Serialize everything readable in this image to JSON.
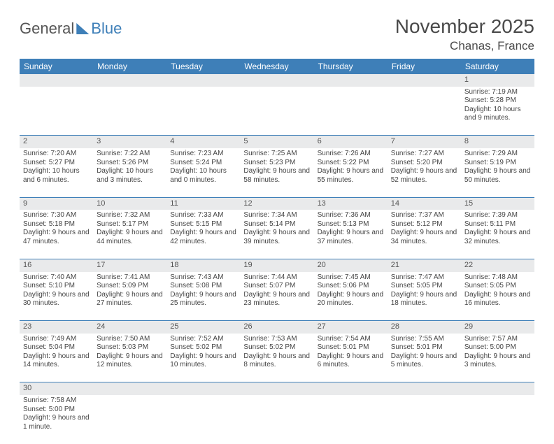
{
  "logo": {
    "text1": "General",
    "text2": "Blue"
  },
  "title": "November 2025",
  "location": "Chanas, France",
  "weekdays": [
    "Sunday",
    "Monday",
    "Tuesday",
    "Wednesday",
    "Thursday",
    "Friday",
    "Saturday"
  ],
  "colors": {
    "header_bg": "#3e7fb8",
    "daynum_bg": "#e9eaeb",
    "row_border": "#3e7fb8"
  },
  "weeks": [
    [
      null,
      null,
      null,
      null,
      null,
      null,
      {
        "n": "1",
        "sunrise": "Sunrise: 7:19 AM",
        "sunset": "Sunset: 5:28 PM",
        "daylight": "Daylight: 10 hours and 9 minutes."
      }
    ],
    [
      {
        "n": "2",
        "sunrise": "Sunrise: 7:20 AM",
        "sunset": "Sunset: 5:27 PM",
        "daylight": "Daylight: 10 hours and 6 minutes."
      },
      {
        "n": "3",
        "sunrise": "Sunrise: 7:22 AM",
        "sunset": "Sunset: 5:26 PM",
        "daylight": "Daylight: 10 hours and 3 minutes."
      },
      {
        "n": "4",
        "sunrise": "Sunrise: 7:23 AM",
        "sunset": "Sunset: 5:24 PM",
        "daylight": "Daylight: 10 hours and 0 minutes."
      },
      {
        "n": "5",
        "sunrise": "Sunrise: 7:25 AM",
        "sunset": "Sunset: 5:23 PM",
        "daylight": "Daylight: 9 hours and 58 minutes."
      },
      {
        "n": "6",
        "sunrise": "Sunrise: 7:26 AM",
        "sunset": "Sunset: 5:22 PM",
        "daylight": "Daylight: 9 hours and 55 minutes."
      },
      {
        "n": "7",
        "sunrise": "Sunrise: 7:27 AM",
        "sunset": "Sunset: 5:20 PM",
        "daylight": "Daylight: 9 hours and 52 minutes."
      },
      {
        "n": "8",
        "sunrise": "Sunrise: 7:29 AM",
        "sunset": "Sunset: 5:19 PM",
        "daylight": "Daylight: 9 hours and 50 minutes."
      }
    ],
    [
      {
        "n": "9",
        "sunrise": "Sunrise: 7:30 AM",
        "sunset": "Sunset: 5:18 PM",
        "daylight": "Daylight: 9 hours and 47 minutes."
      },
      {
        "n": "10",
        "sunrise": "Sunrise: 7:32 AM",
        "sunset": "Sunset: 5:17 PM",
        "daylight": "Daylight: 9 hours and 44 minutes."
      },
      {
        "n": "11",
        "sunrise": "Sunrise: 7:33 AM",
        "sunset": "Sunset: 5:15 PM",
        "daylight": "Daylight: 9 hours and 42 minutes."
      },
      {
        "n": "12",
        "sunrise": "Sunrise: 7:34 AM",
        "sunset": "Sunset: 5:14 PM",
        "daylight": "Daylight: 9 hours and 39 minutes."
      },
      {
        "n": "13",
        "sunrise": "Sunrise: 7:36 AM",
        "sunset": "Sunset: 5:13 PM",
        "daylight": "Daylight: 9 hours and 37 minutes."
      },
      {
        "n": "14",
        "sunrise": "Sunrise: 7:37 AM",
        "sunset": "Sunset: 5:12 PM",
        "daylight": "Daylight: 9 hours and 34 minutes."
      },
      {
        "n": "15",
        "sunrise": "Sunrise: 7:39 AM",
        "sunset": "Sunset: 5:11 PM",
        "daylight": "Daylight: 9 hours and 32 minutes."
      }
    ],
    [
      {
        "n": "16",
        "sunrise": "Sunrise: 7:40 AM",
        "sunset": "Sunset: 5:10 PM",
        "daylight": "Daylight: 9 hours and 30 minutes."
      },
      {
        "n": "17",
        "sunrise": "Sunrise: 7:41 AM",
        "sunset": "Sunset: 5:09 PM",
        "daylight": "Daylight: 9 hours and 27 minutes."
      },
      {
        "n": "18",
        "sunrise": "Sunrise: 7:43 AM",
        "sunset": "Sunset: 5:08 PM",
        "daylight": "Daylight: 9 hours and 25 minutes."
      },
      {
        "n": "19",
        "sunrise": "Sunrise: 7:44 AM",
        "sunset": "Sunset: 5:07 PM",
        "daylight": "Daylight: 9 hours and 23 minutes."
      },
      {
        "n": "20",
        "sunrise": "Sunrise: 7:45 AM",
        "sunset": "Sunset: 5:06 PM",
        "daylight": "Daylight: 9 hours and 20 minutes."
      },
      {
        "n": "21",
        "sunrise": "Sunrise: 7:47 AM",
        "sunset": "Sunset: 5:05 PM",
        "daylight": "Daylight: 9 hours and 18 minutes."
      },
      {
        "n": "22",
        "sunrise": "Sunrise: 7:48 AM",
        "sunset": "Sunset: 5:05 PM",
        "daylight": "Daylight: 9 hours and 16 minutes."
      }
    ],
    [
      {
        "n": "23",
        "sunrise": "Sunrise: 7:49 AM",
        "sunset": "Sunset: 5:04 PM",
        "daylight": "Daylight: 9 hours and 14 minutes."
      },
      {
        "n": "24",
        "sunrise": "Sunrise: 7:50 AM",
        "sunset": "Sunset: 5:03 PM",
        "daylight": "Daylight: 9 hours and 12 minutes."
      },
      {
        "n": "25",
        "sunrise": "Sunrise: 7:52 AM",
        "sunset": "Sunset: 5:02 PM",
        "daylight": "Daylight: 9 hours and 10 minutes."
      },
      {
        "n": "26",
        "sunrise": "Sunrise: 7:53 AM",
        "sunset": "Sunset: 5:02 PM",
        "daylight": "Daylight: 9 hours and 8 minutes."
      },
      {
        "n": "27",
        "sunrise": "Sunrise: 7:54 AM",
        "sunset": "Sunset: 5:01 PM",
        "daylight": "Daylight: 9 hours and 6 minutes."
      },
      {
        "n": "28",
        "sunrise": "Sunrise: 7:55 AM",
        "sunset": "Sunset: 5:01 PM",
        "daylight": "Daylight: 9 hours and 5 minutes."
      },
      {
        "n": "29",
        "sunrise": "Sunrise: 7:57 AM",
        "sunset": "Sunset: 5:00 PM",
        "daylight": "Daylight: 9 hours and 3 minutes."
      }
    ],
    [
      {
        "n": "30",
        "sunrise": "Sunrise: 7:58 AM",
        "sunset": "Sunset: 5:00 PM",
        "daylight": "Daylight: 9 hours and 1 minute."
      },
      null,
      null,
      null,
      null,
      null,
      null
    ]
  ]
}
